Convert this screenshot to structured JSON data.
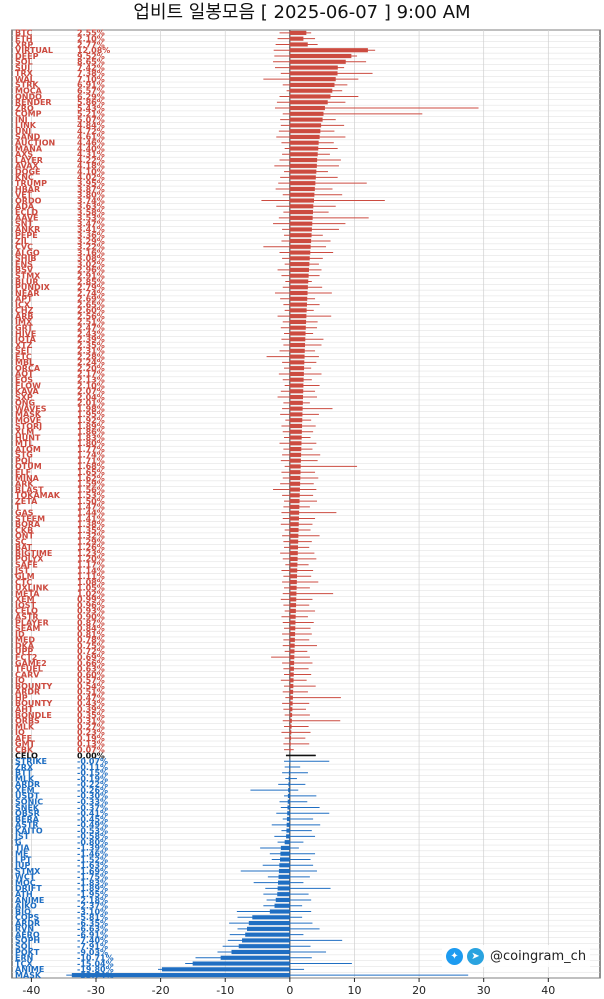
{
  "title": "업비트 일봉모음 [ 2025-06-07 ]  9:00 AM",
  "colors": {
    "up": "#cc4b40",
    "down": "#1f6ec2",
    "flat": "#111111"
  },
  "brand": {
    "handle": "@coingram_ch",
    "icons": [
      "twitter-icon",
      "telegram-icon"
    ]
  },
  "chart_data": {
    "type": "bar",
    "orientation": "horizontal",
    "title": "업비트 일봉모음 [ 2025-06-07 ]  9:00 AM",
    "xlim": [
      -43,
      48
    ],
    "xticks": [
      -40,
      -30,
      -20,
      -10,
      0,
      10,
      20,
      30,
      40
    ],
    "grid": true,
    "unit": "%",
    "ranges": [
      {
        "lo": -1.6,
        "hi": 3.3
      },
      {
        "lo": -1.9,
        "hi": 3.9
      },
      {
        "lo": -2.2,
        "hi": 4.3
      },
      {
        "lo": -2.5,
        "hi": 13.2
      },
      {
        "lo": -2.4,
        "hi": 10.4
      },
      {
        "lo": -2.6,
        "hi": 11.8
      },
      {
        "lo": -2.3,
        "hi": 8.4
      },
      {
        "lo": -1.4,
        "hi": 12.8
      },
      {
        "lo": -4.1,
        "hi": 10.6
      },
      {
        "lo": -1.1,
        "hi": 8.9
      },
      {
        "lo": -0.5,
        "hi": 8.1
      },
      {
        "lo": -1.6,
        "hi": 10.6
      },
      {
        "lo": -2.0,
        "hi": 8.6
      },
      {
        "lo": -2.3,
        "hi": 29.2
      },
      {
        "lo": -1.1,
        "hi": 20.5
      },
      {
        "lo": -1.5,
        "hi": 7.1
      },
      {
        "lo": -1.4,
        "hi": 8.4
      },
      {
        "lo": -1.7,
        "hi": 6.9
      },
      {
        "lo": -2.1,
        "hi": 8.6
      },
      {
        "lo": -1.3,
        "hi": 6.8
      },
      {
        "lo": -0.8,
        "hi": 7.4
      },
      {
        "lo": -1.2,
        "hi": 6.2
      },
      {
        "lo": -1.6,
        "hi": 7.9
      },
      {
        "lo": -2.4,
        "hi": 7.6
      },
      {
        "lo": -0.9,
        "hi": 5.9
      },
      {
        "lo": -1.5,
        "hi": 7.4
      },
      {
        "lo": -1.8,
        "hi": 11.9
      },
      {
        "lo": -2.2,
        "hi": 6.6
      },
      {
        "lo": -1.1,
        "hi": 8.1
      },
      {
        "lo": -4.4,
        "hi": 14.7
      },
      {
        "lo": -2.1,
        "hi": 7.1
      },
      {
        "lo": -1.0,
        "hi": 6.0
      },
      {
        "lo": -1.7,
        "hi": 12.2
      },
      {
        "lo": -2.6,
        "hi": 8.6
      },
      {
        "lo": -1.2,
        "hi": 7.6
      },
      {
        "lo": -0.9,
        "hi": 5.1
      },
      {
        "lo": -1.3,
        "hi": 6.3
      },
      {
        "lo": -4.1,
        "hi": 5.6
      },
      {
        "lo": -1.6,
        "hi": 6.7
      },
      {
        "lo": -1.2,
        "hi": 5.1
      },
      {
        "lo": -0.8,
        "hi": 4.5
      },
      {
        "lo": -1.9,
        "hi": 4.9
      },
      {
        "lo": -1.3,
        "hi": 4.6
      },
      {
        "lo": -0.7,
        "hi": 3.4
      },
      {
        "lo": -1.1,
        "hi": 5.0
      },
      {
        "lo": -2.3,
        "hi": 6.5
      },
      {
        "lo": -1.5,
        "hi": 3.9
      },
      {
        "lo": -1.0,
        "hi": 4.6
      },
      {
        "lo": -0.8,
        "hi": 3.7
      },
      {
        "lo": -1.9,
        "hi": 6.4
      },
      {
        "lo": -1.1,
        "hi": 4.3
      },
      {
        "lo": -1.4,
        "hi": 4.2
      },
      {
        "lo": -0.9,
        "hi": 3.6
      },
      {
        "lo": -1.3,
        "hi": 5.2
      },
      {
        "lo": -1.0,
        "hi": 4.9
      },
      {
        "lo": -1.6,
        "hi": 3.9
      },
      {
        "lo": -3.6,
        "hi": 4.5
      },
      {
        "lo": -1.2,
        "hi": 4.1
      },
      {
        "lo": -0.9,
        "hi": 3.3
      },
      {
        "lo": -1.7,
        "hi": 4.9
      },
      {
        "lo": -1.1,
        "hi": 3.4
      },
      {
        "lo": -0.8,
        "hi": 4.6
      },
      {
        "lo": -1.4,
        "hi": 3.9
      },
      {
        "lo": -1.9,
        "hi": 4.2
      },
      {
        "lo": -1.0,
        "hi": 3.1
      },
      {
        "lo": -1.2,
        "hi": 6.6
      },
      {
        "lo": -1.5,
        "hi": 4.5
      },
      {
        "lo": -0.7,
        "hi": 3.3
      },
      {
        "lo": -1.3,
        "hi": 4.0
      },
      {
        "lo": -1.1,
        "hi": 3.6
      },
      {
        "lo": -0.9,
        "hi": 3.2
      },
      {
        "lo": -1.6,
        "hi": 4.1
      },
      {
        "lo": -1.0,
        "hi": 3.5
      },
      {
        "lo": -1.2,
        "hi": 4.7
      },
      {
        "lo": -1.4,
        "hi": 4.3
      },
      {
        "lo": -0.8,
        "hi": 10.4
      },
      {
        "lo": -1.3,
        "hi": 3.9
      },
      {
        "lo": -1.1,
        "hi": 4.4
      },
      {
        "lo": -1.5,
        "hi": 3.7
      },
      {
        "lo": -2.6,
        "hi": 4.1
      },
      {
        "lo": -1.2,
        "hi": 3.6
      },
      {
        "lo": -0.9,
        "hi": 4.2
      },
      {
        "lo": -1.0,
        "hi": 3.1
      },
      {
        "lo": -1.3,
        "hi": 7.2
      },
      {
        "lo": -1.1,
        "hi": 3.9
      },
      {
        "lo": -1.4,
        "hi": 3.5
      },
      {
        "lo": -0.8,
        "hi": 3.2
      },
      {
        "lo": -1.2,
        "hi": 4.6
      },
      {
        "lo": -1.0,
        "hi": 3.4
      },
      {
        "lo": -0.9,
        "hi": 3.0
      },
      {
        "lo": -1.5,
        "hi": 3.8
      },
      {
        "lo": -1.1,
        "hi": 4.1
      },
      {
        "lo": -0.7,
        "hi": 2.9
      },
      {
        "lo": -1.3,
        "hi": 3.6
      },
      {
        "lo": -1.0,
        "hi": 3.3
      },
      {
        "lo": -1.2,
        "hi": 4.4
      },
      {
        "lo": -0.9,
        "hi": 3.1
      },
      {
        "lo": -1.1,
        "hi": 6.7
      },
      {
        "lo": -1.4,
        "hi": 3.5
      },
      {
        "lo": -1.0,
        "hi": 3.0
      },
      {
        "lo": -0.8,
        "hi": 3.9
      },
      {
        "lo": -1.3,
        "hi": 2.8
      },
      {
        "lo": -1.1,
        "hi": 3.7
      },
      {
        "lo": -0.9,
        "hi": 3.2
      },
      {
        "lo": -1.2,
        "hi": 3.4
      },
      {
        "lo": -1.0,
        "hi": 3.0
      },
      {
        "lo": -1.1,
        "hi": 4.2
      },
      {
        "lo": -0.8,
        "hi": 2.7
      },
      {
        "lo": -2.9,
        "hi": 3.1
      },
      {
        "lo": -1.2,
        "hi": 3.5
      },
      {
        "lo": -1.0,
        "hi": 2.9
      },
      {
        "lo": -0.9,
        "hi": 3.3
      },
      {
        "lo": -1.4,
        "hi": 2.6
      },
      {
        "lo": -0.9,
        "hi": 4.0
      },
      {
        "lo": -1.1,
        "hi": 2.8
      },
      {
        "lo": -0.7,
        "hi": 7.9
      },
      {
        "lo": -1.2,
        "hi": 3.0
      },
      {
        "lo": -1.0,
        "hi": 2.5
      },
      {
        "lo": -0.8,
        "hi": 3.1
      },
      {
        "lo": -1.1,
        "hi": 7.8
      },
      {
        "lo": -0.9,
        "hi": 2.9
      },
      {
        "lo": -1.3,
        "hi": 3.2
      },
      {
        "lo": -0.8,
        "hi": 2.4
      },
      {
        "lo": -1.0,
        "hi": 3.0
      },
      {
        "lo": -0.9,
        "hi": 0.6
      }
    ],
    "positive": [
      {
        "ticker": "BTC",
        "value": 2.55
      },
      {
        "ticker": "ETH",
        "value": 2.1
      },
      {
        "ticker": "XRP",
        "value": 2.77
      },
      {
        "ticker": "VIRTUAL",
        "value": 12.08
      },
      {
        "ticker": "DEEP",
        "value": 9.52
      },
      {
        "ticker": "SOL",
        "value": 8.65
      },
      {
        "ticker": "SUI",
        "value": 7.42
      },
      {
        "ticker": "TRX",
        "value": 7.38
      },
      {
        "ticker": "WAL",
        "value": 7.1
      },
      {
        "ticker": "STRK",
        "value": 6.91
      },
      {
        "ticker": "MOCA",
        "value": 6.57
      },
      {
        "ticker": "ONDO",
        "value": 6.29
      },
      {
        "ticker": "RENDER",
        "value": 5.86
      },
      {
        "ticker": "ZRO",
        "value": 5.43
      },
      {
        "ticker": "COMP",
        "value": 5.21
      },
      {
        "ticker": "INJ",
        "value": 5.07
      },
      {
        "ticker": "LINK",
        "value": 4.84
      },
      {
        "ticker": "UNI",
        "value": 4.72
      },
      {
        "ticker": "SAND",
        "value": 4.61
      },
      {
        "ticker": "AUCTION",
        "value": 4.46
      },
      {
        "ticker": "MANA",
        "value": 4.4
      },
      {
        "ticker": "AXS",
        "value": 4.31
      },
      {
        "ticker": "LAYER",
        "value": 4.22
      },
      {
        "ticker": "AVAX",
        "value": 4.18
      },
      {
        "ticker": "DOGE",
        "value": 4.1
      },
      {
        "ticker": "KNC",
        "value": 4.02
      },
      {
        "ticker": "TRUMP",
        "value": 3.95
      },
      {
        "ticker": "HBAR",
        "value": 3.87
      },
      {
        "ticker": "VET",
        "value": 3.8
      },
      {
        "ticker": "ORDO",
        "value": 3.74
      },
      {
        "ticker": "ADA",
        "value": 3.63
      },
      {
        "ticker": "ECLD",
        "value": 3.58
      },
      {
        "ticker": "AAVE",
        "value": 3.53
      },
      {
        "ticker": "SNT",
        "value": 3.47
      },
      {
        "ticker": "ANKR",
        "value": 3.41
      },
      {
        "ticker": "PEPE",
        "value": 3.36
      },
      {
        "ticker": "ZIL",
        "value": 3.29
      },
      {
        "ticker": "CVC",
        "value": 3.22
      },
      {
        "ticker": "ALGO",
        "value": 3.16
      },
      {
        "ticker": "SHIB",
        "value": 3.08
      },
      {
        "ticker": "ENS",
        "value": 3.02
      },
      {
        "ticker": "BSV",
        "value": 2.96
      },
      {
        "ticker": "STMX",
        "value": 2.91
      },
      {
        "ticker": "BLUR",
        "value": 2.85
      },
      {
        "ticker": "PUNDIX",
        "value": 2.79
      },
      {
        "ticker": "NEAR",
        "value": 2.74
      },
      {
        "ticker": "APT",
        "value": 2.69
      },
      {
        "ticker": "ICX",
        "value": 2.65
      },
      {
        "ticker": "CHZ",
        "value": 2.6
      },
      {
        "ticker": "ARB",
        "value": 2.56
      },
      {
        "ticker": "IMX",
        "value": 2.51
      },
      {
        "ticker": "GRT",
        "value": 2.47
      },
      {
        "ticker": "HIVE",
        "value": 2.43
      },
      {
        "ticker": "IOTA",
        "value": 2.39
      },
      {
        "ticker": "XTZ",
        "value": 2.35
      },
      {
        "ticker": "SEI",
        "value": 2.31
      },
      {
        "ticker": "ETC",
        "value": 2.28
      },
      {
        "ticker": "MBL",
        "value": 2.24
      },
      {
        "ticker": "ORCA",
        "value": 2.2
      },
      {
        "ticker": "AQT",
        "value": 2.17
      },
      {
        "ticker": "EOS",
        "value": 2.13
      },
      {
        "ticker": "FLOW",
        "value": 2.1
      },
      {
        "ticker": "KAVA",
        "value": 2.07
      },
      {
        "ticker": "SXP",
        "value": 2.04
      },
      {
        "ticker": "ONG",
        "value": 2.01
      },
      {
        "ticker": "WAVES",
        "value": 1.98
      },
      {
        "ticker": "MASK",
        "value": 1.95
      },
      {
        "ticker": "MOVE",
        "value": 1.92
      },
      {
        "ticker": "STORJ",
        "value": 1.89
      },
      {
        "ticker": "XLM",
        "value": 1.86
      },
      {
        "ticker": "HUNT",
        "value": 1.83
      },
      {
        "ticker": "MTL",
        "value": 1.8
      },
      {
        "ticker": "ATOM",
        "value": 1.77
      },
      {
        "ticker": "STG",
        "value": 1.74
      },
      {
        "ticker": "POL",
        "value": 1.71
      },
      {
        "ticker": "QTUM",
        "value": 1.68
      },
      {
        "ticker": "ELF",
        "value": 1.65
      },
      {
        "ticker": "MINA",
        "value": 1.62
      },
      {
        "ticker": "ARK",
        "value": 1.59
      },
      {
        "ticker": "BLAST",
        "value": 1.56
      },
      {
        "ticker": "TOKAMAK",
        "value": 1.53
      },
      {
        "ticker": "ZETA",
        "value": 1.5
      },
      {
        "ticker": "T",
        "value": 1.47
      },
      {
        "ticker": "GAS",
        "value": 1.44
      },
      {
        "ticker": "STEEM",
        "value": 1.41
      },
      {
        "ticker": "BORA",
        "value": 1.38
      },
      {
        "ticker": "CKB",
        "value": 1.35
      },
      {
        "ticker": "ONT",
        "value": 1.32
      },
      {
        "ticker": "SC",
        "value": 1.29
      },
      {
        "ticker": "BAT",
        "value": 1.26
      },
      {
        "ticker": "BIGTIME",
        "value": 1.23
      },
      {
        "ticker": "POLYX",
        "value": 1.2
      },
      {
        "ticker": "SAFE",
        "value": 1.17
      },
      {
        "ticker": "JST",
        "value": 1.14
      },
      {
        "ticker": "GLM",
        "value": 1.11
      },
      {
        "ticker": "CTC",
        "value": 1.08
      },
      {
        "ticker": "UXLINK",
        "value": 1.05
      },
      {
        "ticker": "META",
        "value": 1.02
      },
      {
        "ticker": "XEM",
        "value": 0.99
      },
      {
        "ticker": "IOST",
        "value": 0.96
      },
      {
        "ticker": "CELO",
        "value": 0.93
      },
      {
        "ticker": "ASTR",
        "value": 0.9
      },
      {
        "ticker": "PLAYER",
        "value": 0.87
      },
      {
        "ticker": "SEAM",
        "value": 0.84
      },
      {
        "ticker": "ID",
        "value": 0.81
      },
      {
        "ticker": "MED",
        "value": 0.78
      },
      {
        "ticker": "DKA",
        "value": 0.75
      },
      {
        "ticker": "UPP",
        "value": 0.72
      },
      {
        "ticker": "FCT2",
        "value": 0.69
      },
      {
        "ticker": "GAME2",
        "value": 0.66
      },
      {
        "ticker": "TFUEL",
        "value": 0.63
      },
      {
        "ticker": "CARV",
        "value": 0.6
      },
      {
        "ticker": "IQ",
        "value": 0.57
      },
      {
        "ticker": "BOUNTY",
        "value": 0.54
      },
      {
        "ticker": "ARDR",
        "value": 0.51
      },
      {
        "ticker": "HP",
        "value": 0.47
      },
      {
        "ticker": "BOUNTY",
        "value": 0.43
      },
      {
        "ticker": "AHT",
        "value": 0.39
      },
      {
        "ticker": "BONDLE",
        "value": 0.35
      },
      {
        "ticker": "ORBS",
        "value": 0.31
      },
      {
        "ticker": "MLK",
        "value": 0.27
      },
      {
        "ticker": "IQ",
        "value": 0.23
      },
      {
        "ticker": "AFE",
        "value": 0.19
      },
      {
        "ticker": "GMT",
        "value": 0.13
      },
      {
        "ticker": "CBK",
        "value": 0.07
      }
    ],
    "flat": {
      "ticker": "CELO",
      "value": 0.0,
      "lo": -0.6,
      "hi": 4.0
    },
    "negative": [
      {
        "ticker": "STRIKE",
        "value": -0.07,
        "lo": -0.9,
        "hi": 6.1
      },
      {
        "ticker": "ZRX",
        "value": -0.11,
        "lo": -0.8,
        "hi": 1.6
      },
      {
        "ticker": "BTT",
        "value": -0.15,
        "lo": -1.2,
        "hi": 2.8
      },
      {
        "ticker": "MLK",
        "value": -0.19,
        "lo": -0.7,
        "hi": 1.1
      },
      {
        "ticker": "ARDR",
        "value": -0.22,
        "lo": -1.8,
        "hi": 2.4
      },
      {
        "ticker": "XEM",
        "value": -0.26,
        "lo": -6.1,
        "hi": 1.3
      },
      {
        "ticker": "USDT",
        "value": -0.3,
        "lo": -0.9,
        "hi": 4.1
      },
      {
        "ticker": "SONIC",
        "value": -0.33,
        "lo": -1.6,
        "hi": 2.7
      },
      {
        "ticker": "SNEK",
        "value": -0.37,
        "lo": -1.4,
        "hi": 4.6
      },
      {
        "ticker": "OBSR",
        "value": -0.41,
        "lo": -2.1,
        "hi": 6.1
      },
      {
        "ticker": "BERA",
        "value": -0.45,
        "lo": -1.1,
        "hi": 3.6
      },
      {
        "ticker": "ASTR",
        "value": -0.49,
        "lo": -2.8,
        "hi": 4.7
      },
      {
        "ticker": "KAITO",
        "value": -0.53,
        "lo": -1.3,
        "hi": 3.4
      },
      {
        "ticker": "JST",
        "value": -0.58,
        "lo": -2.4,
        "hi": 3.9
      },
      {
        "ticker": "G",
        "value": -0.8,
        "lo": -1.9,
        "hi": 2.1
      },
      {
        "ticker": "TIA",
        "value": -1.39,
        "lo": -4.6,
        "hi": 1.4
      },
      {
        "ticker": "ME",
        "value": -1.46,
        "lo": -3.1,
        "hi": 3.9
      },
      {
        "ticker": "LPT",
        "value": -1.52,
        "lo": -2.8,
        "hi": 3.2
      },
      {
        "ticker": "JUP",
        "value": -1.63,
        "lo": -4.2,
        "hi": 3.6
      },
      {
        "ticker": "STMX",
        "value": -1.69,
        "lo": -7.6,
        "hi": 4.2
      },
      {
        "ticker": "WCT",
        "value": -1.75,
        "lo": -3.4,
        "hi": 3.1
      },
      {
        "ticker": "MOC",
        "value": -1.83,
        "lo": -5.6,
        "hi": 2.1
      },
      {
        "ticker": "DRIFT",
        "value": -1.89,
        "lo": -3.8,
        "hi": 6.3
      },
      {
        "ticker": "ATH",
        "value": -1.95,
        "lo": -4.1,
        "hi": 2.9
      },
      {
        "ticker": "ANIME",
        "value": -2.18,
        "lo": -3.6,
        "hi": 3.3
      },
      {
        "ticker": "AIKO",
        "value": -2.37,
        "lo": -4.1,
        "hi": 1.9
      },
      {
        "ticker": "BIO",
        "value": -3.1,
        "lo": -8.2,
        "hi": 3.3
      },
      {
        "ticker": "COPS",
        "value": -5.81,
        "lo": -8.1,
        "hi": 1.9
      },
      {
        "ticker": "ARDR",
        "value": -6.35,
        "lo": -9.4,
        "hi": 3.5
      },
      {
        "ticker": "RVN",
        "value": -6.63,
        "lo": -8.1,
        "hi": 4.6
      },
      {
        "ticker": "AERO",
        "value": -6.91,
        "lo": -9.3,
        "hi": 2.1
      },
      {
        "ticker": "SOPH",
        "value": -7.4,
        "lo": -9.6,
        "hi": 8.1
      },
      {
        "ticker": "SOL",
        "value": -7.91,
        "lo": -10.4,
        "hi": 3.2
      },
      {
        "ticker": "POKT",
        "value": -9.03,
        "lo": -11.2,
        "hi": 5.6
      },
      {
        "ticker": "ERN",
        "value": -10.71,
        "lo": -14.6,
        "hi": 3.4
      },
      {
        "ticker": "TCX",
        "value": -15.04,
        "lo": -16.2,
        "hi": 9.6
      },
      {
        "ticker": "ANIME",
        "value": -19.8,
        "lo": -20.4,
        "hi": 2.2
      },
      {
        "ticker": "MASK",
        "value": -33.74,
        "lo": -34.6,
        "hi": 27.6
      }
    ]
  }
}
